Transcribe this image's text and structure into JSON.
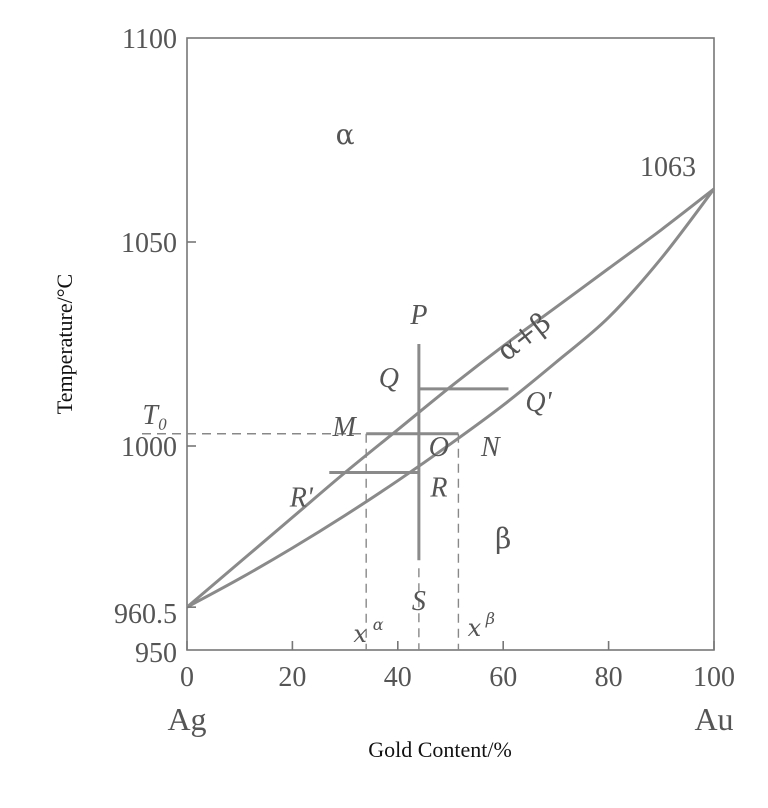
{
  "chart_data": {
    "type": "line",
    "title": "",
    "xlabel": "Gold Content/%",
    "ylabel": "Temperature/°C",
    "xlim": [
      0,
      100
    ],
    "ylim": [
      950,
      1100
    ],
    "x_ticks": [
      "0",
      "20",
      "40",
      "60",
      "80",
      "100"
    ],
    "y_ticks": [
      "950",
      "960.5",
      "1000",
      "1050",
      "1100"
    ],
    "x_end_labels": {
      "left": "Ag",
      "right": "Au"
    },
    "melting_points": {
      "Ag": 960.5,
      "Au": 1063
    },
    "melting_point_labels": {
      "Ag": "960.5",
      "Au": "1063"
    },
    "series": [
      {
        "x": [
          0,
          10,
          20,
          30,
          40,
          50,
          60,
          70,
          80,
          90,
          100
        ],
        "y": [
          960.5,
          971.5,
          982.5,
          993.5,
          1004,
          1014.5,
          1024.5,
          1034,
          1043.5,
          1053,
          1063
        ]
      },
      {
        "x": [
          0,
          10,
          20,
          30,
          40,
          50,
          60,
          70,
          80,
          90,
          100
        ],
        "y": [
          960.5,
          967.5,
          975,
          983,
          991.5,
          1000.5,
          1010,
          1020.5,
          1031.5,
          1046,
          1063
        ]
      }
    ],
    "regions": [
      {
        "label": "α",
        "x": 30,
        "y": 1074
      },
      {
        "label": "α+β",
        "x": 65,
        "y": 1025
      },
      {
        "label": "β",
        "x": 60,
        "y": 975
      }
    ],
    "reference": {
      "T0_label": "T₀",
      "T0": 1003,
      "composition": 44,
      "x_alpha": 34,
      "x_beta": 51.5,
      "x_alpha_label": "x",
      "x_alpha_sup": "α",
      "x_beta_label": "x",
      "x_beta_sup": "β",
      "tie_lines": [
        {
          "from": "Q",
          "to": "Q'",
          "y": 1014,
          "x1": 44,
          "x2": 61
        },
        {
          "from": "M",
          "to": "N",
          "y": 1003,
          "x1": 34,
          "x2": 51.5
        },
        {
          "from": "R'",
          "to": "R",
          "y": 993.5,
          "x1": 27,
          "x2": 44
        }
      ],
      "vertical_line": {
        "x": 44,
        "y1": 972,
        "y2": 1025
      }
    },
    "points": [
      {
        "label": "P",
        "x": 44,
        "y": 1025
      },
      {
        "label": "Q",
        "x": 44,
        "y": 1014
      },
      {
        "label": "Q'",
        "x": 61,
        "y": 1014
      },
      {
        "label": "O",
        "x": 44,
        "y": 1003
      },
      {
        "label": "M",
        "x": 34,
        "y": 1003
      },
      {
        "label": "N",
        "x": 51.5,
        "y": 1003
      },
      {
        "label": "R'",
        "x": 27,
        "y": 993.5
      },
      {
        "label": "R",
        "x": 44,
        "y": 993.5
      },
      {
        "label": "S",
        "x": 44,
        "y": 972
      }
    ],
    "grid": false,
    "colors": {
      "curve": "#8a8a8a",
      "axis": "#777777",
      "text": "#555555",
      "dashed": "#888888"
    }
  }
}
